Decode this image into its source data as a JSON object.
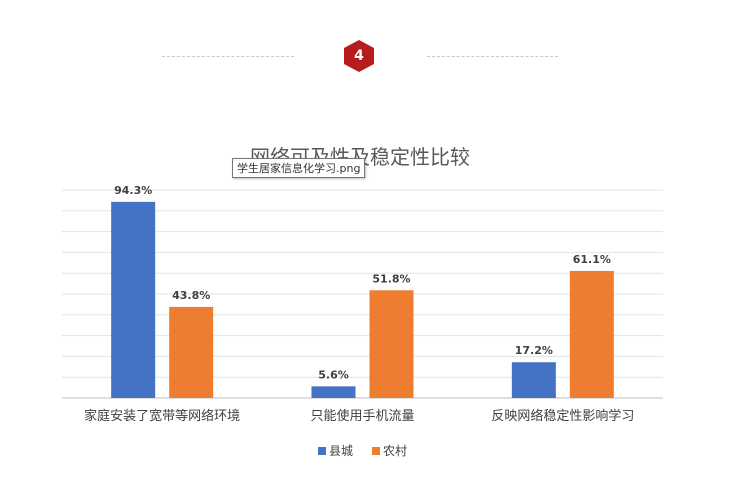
{
  "badge": {
    "number": "4",
    "color": "#b71c1c"
  },
  "tooltip": {
    "text": "学生居家信息化学习.png"
  },
  "chart_data": {
    "type": "bar",
    "title": "网络可及性及稳定性比较",
    "categories": [
      "家庭安装了宽带等网络环境",
      "只能使用手机流量",
      "反映网络稳定性影响学习"
    ],
    "series": [
      {
        "name": "县城",
        "values": [
          94.3,
          5.6,
          17.2
        ],
        "color": "#4472c4"
      },
      {
        "name": "农村",
        "values": [
          43.8,
          51.8,
          61.1
        ],
        "color": "#ed7d31"
      }
    ],
    "value_suffix": "%",
    "ylim": [
      0,
      100
    ],
    "grid": true,
    "legend": "bottom"
  }
}
